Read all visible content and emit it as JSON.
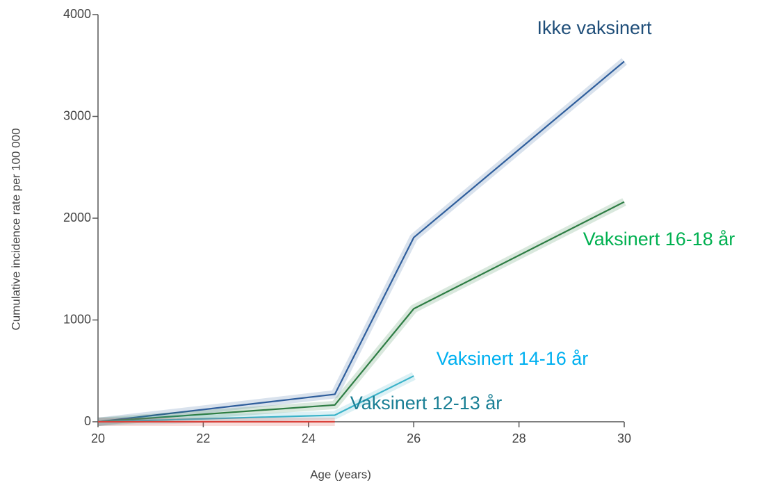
{
  "chart_data": {
    "type": "line",
    "x_label": "Age (years)",
    "y_label": "Cumulative incidence rate per 100 000",
    "x": [
      20,
      24.5,
      26,
      30
    ],
    "xlim": [
      20,
      30
    ],
    "xticks": [
      20,
      22,
      24,
      26,
      28,
      30
    ],
    "ylim": [
      0,
      4000
    ],
    "yticks": [
      0,
      1000,
      2000,
      3000,
      4000
    ],
    "grid": false,
    "series": [
      {
        "name": "Ikke vaksinert",
        "color": "#2f5e9c",
        "label_color": "#1f4e79",
        "values": [
          0,
          270,
          1810,
          3540
        ]
      },
      {
        "name": "Vaksinert 16-18 år",
        "color": "#2e7d44",
        "label_color": "#00b050",
        "values": [
          0,
          165,
          1110,
          2160
        ]
      },
      {
        "name": "Vaksinert 14-16 år",
        "color": "#3bb3c9",
        "label_color": "#00b0f0",
        "values": [
          0,
          65,
          450,
          null
        ]
      },
      {
        "name": "Vaksinert 12-13 år",
        "color": "#d9413a",
        "label_color": "#1a7f95",
        "values": [
          0,
          0,
          null,
          null
        ]
      }
    ]
  }
}
